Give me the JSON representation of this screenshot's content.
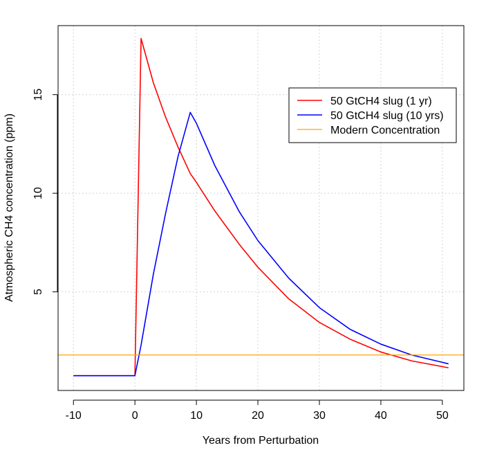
{
  "chart_data": {
    "type": "line",
    "title": "",
    "xlabel": "Years from Perturbation",
    "ylabel": "Atmospheric CH4 concentration (ppm)",
    "xlim": [
      -12.5,
      53.5
    ],
    "ylim": [
      0,
      18.5
    ],
    "xticks": [
      -10,
      0,
      10,
      20,
      30,
      40,
      50
    ],
    "yticks": [
      5,
      10,
      15
    ],
    "grid": true,
    "legend_position": "top-right",
    "series": [
      {
        "name": "50 GtCH4 slug (1 yr)",
        "color": "#ff0000",
        "x": [
          -10,
          0,
          1,
          3,
          5,
          7,
          9,
          10,
          13,
          17,
          20,
          25,
          30,
          35,
          40,
          45,
          51
        ],
        "y": [
          0.75,
          0.75,
          17.85,
          15.6,
          13.85,
          12.35,
          11.0,
          10.55,
          9.1,
          7.4,
          6.25,
          4.65,
          3.45,
          2.6,
          1.95,
          1.5,
          1.15
        ]
      },
      {
        "name": "50 GtCH4 slug (10 yrs)",
        "color": "#0000ff",
        "x": [
          -10,
          0,
          1,
          3,
          5,
          7,
          9,
          10,
          13,
          17,
          20,
          25,
          30,
          35,
          40,
          45,
          51
        ],
        "y": [
          0.75,
          0.75,
          2.3,
          5.9,
          9.0,
          11.85,
          14.1,
          13.55,
          11.4,
          9.05,
          7.6,
          5.7,
          4.2,
          3.1,
          2.35,
          1.8,
          1.35
        ]
      },
      {
        "name": "Modern Concentration",
        "color": "#ffa500",
        "x": [
          -12.5,
          53.5
        ],
        "y": [
          1.8,
          1.8
        ]
      }
    ]
  }
}
